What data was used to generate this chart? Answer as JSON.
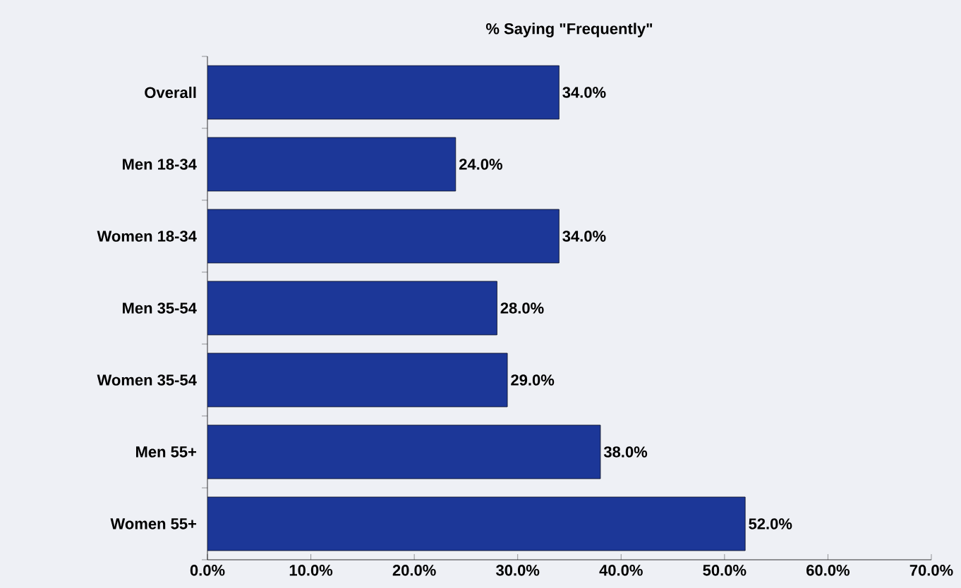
{
  "chart_data": {
    "type": "bar",
    "orientation": "horizontal",
    "title": "% Saying \"Frequently\"",
    "categories": [
      "Overall",
      "Men 18-34",
      "Women 18-34",
      "Men 35-54",
      "Women 35-54",
      "Men 55+",
      "Women 55+"
    ],
    "values": [
      34,
      24,
      34,
      28,
      29,
      38,
      52
    ],
    "value_labels": [
      "34.0%",
      "24.0%",
      "34.0%",
      "28.0%",
      "29.0%",
      "38.0%",
      "52.0%"
    ],
    "color": "#1c3798",
    "xlim": [
      0,
      70
    ],
    "xticks": [
      {
        "value": 0,
        "label": "0.0%"
      },
      {
        "value": 10,
        "label": "10.0%"
      },
      {
        "value": 20,
        "label": "20.0%"
      },
      {
        "value": 30,
        "label": "30.0%"
      },
      {
        "value": 40,
        "label": "40.0%"
      },
      {
        "value": 50,
        "label": "50.0%"
      },
      {
        "value": 60,
        "label": "60.0%"
      },
      {
        "value": 70,
        "label": "70.0%"
      }
    ],
    "grid": false
  }
}
